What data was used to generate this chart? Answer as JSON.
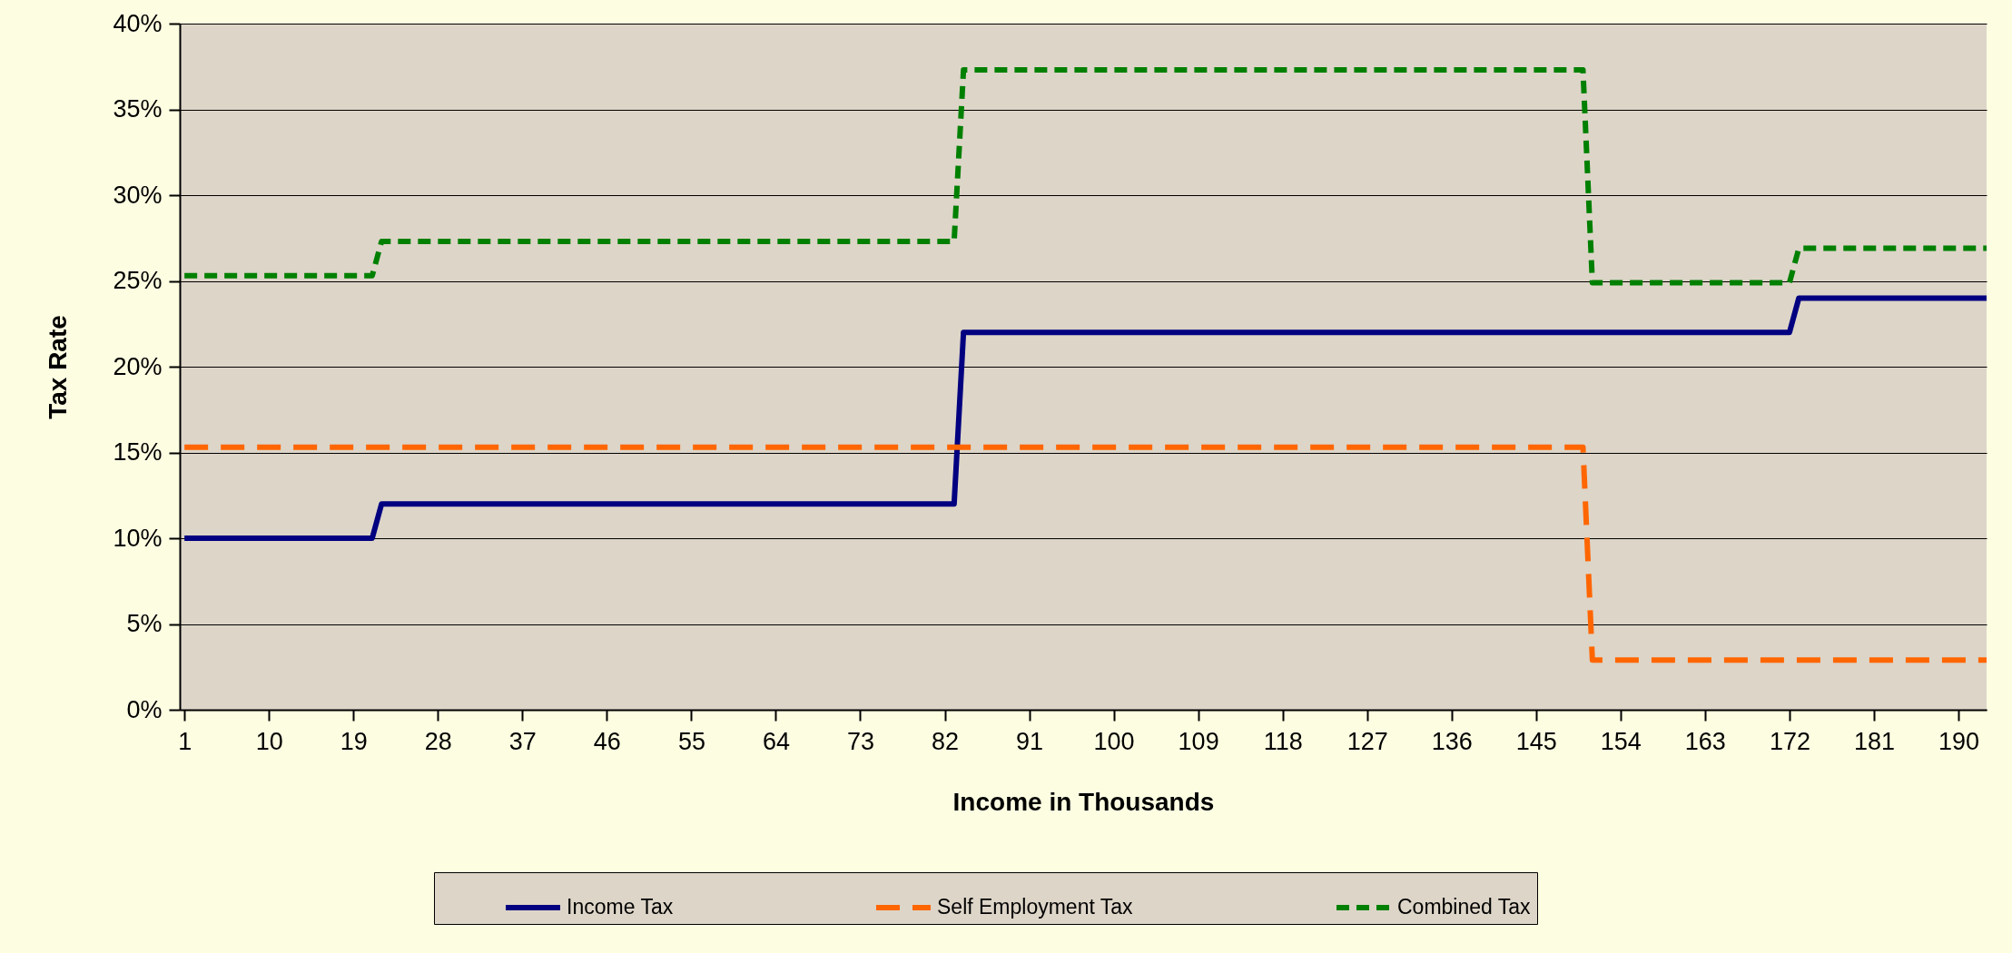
{
  "chart_data": {
    "type": "line",
    "xlabel": "Income in Thousands",
    "ylabel": "Tax Rate",
    "xlim": [
      0.5,
      193
    ],
    "xticks": [
      1,
      10,
      19,
      28,
      37,
      46,
      55,
      64,
      73,
      82,
      91,
      100,
      109,
      118,
      127,
      136,
      145,
      154,
      163,
      172,
      181,
      190
    ],
    "ylim": [
      0,
      40
    ],
    "yticks": [
      {
        "value": 0,
        "label": "0%"
      },
      {
        "value": 5,
        "label": "5%"
      },
      {
        "value": 10,
        "label": "10%"
      },
      {
        "value": 15,
        "label": "15%"
      },
      {
        "value": 20,
        "label": "20%"
      },
      {
        "value": 25,
        "label": "25%"
      },
      {
        "value": 30,
        "label": "30%"
      },
      {
        "value": 35,
        "label": "35%"
      },
      {
        "value": 40,
        "label": "40%"
      }
    ],
    "grid": "y",
    "legend": "bottom",
    "series": [
      {
        "name": "Income Tax",
        "color": "#000080",
        "line_style": "solid",
        "x": [
          1,
          21,
          22,
          83,
          84,
          172,
          173,
          193
        ],
        "values": [
          10,
          10,
          12,
          12,
          22,
          22,
          24,
          24
        ]
      },
      {
        "name": "Self Employment Tax",
        "color": "#ff6600",
        "line_style": "dashed",
        "x": [
          1,
          150,
          151,
          193
        ],
        "values": [
          15.3,
          15.3,
          2.9,
          2.9
        ]
      },
      {
        "name": "Combined Tax",
        "color": "#008000",
        "line_style": "dotted",
        "x": [
          1,
          21,
          22,
          83,
          84,
          150,
          151,
          172,
          173,
          193
        ],
        "values": [
          25.3,
          25.3,
          27.3,
          27.3,
          37.3,
          37.3,
          24.9,
          24.9,
          26.9,
          26.9
        ]
      }
    ]
  }
}
